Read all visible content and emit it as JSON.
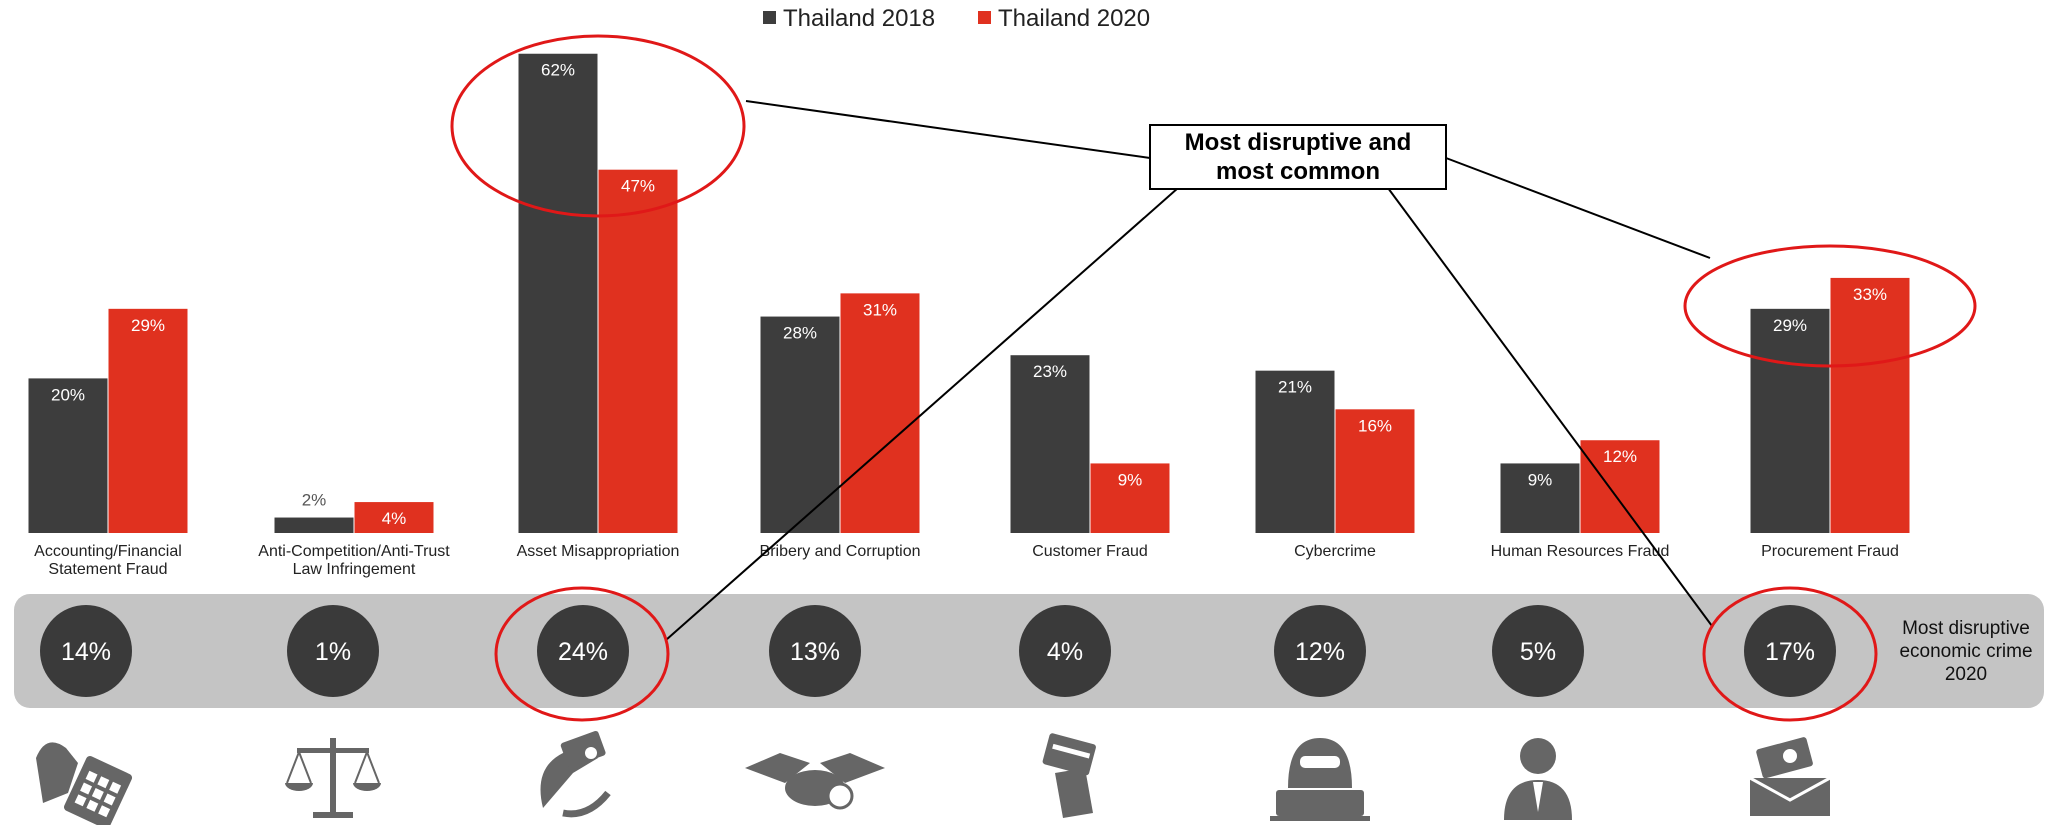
{
  "chart_data": {
    "type": "bar",
    "title": "",
    "xlabel": "",
    "ylabel": "",
    "ylim": [
      0,
      70
    ],
    "grid": false,
    "legend_position": "top-center",
    "categories": [
      "Accounting/Financial Statement Fraud",
      "Anti-Competition/Anti-Trust Law Infringement",
      "Asset Misappropriation",
      "Bribery and Corruption",
      "Customer Fraud",
      "Cybercrime",
      "Human Resources Fraud",
      "Procurement Fraud"
    ],
    "series": [
      {
        "name": "Thailand 2018",
        "values": [
          20,
          2,
          62,
          28,
          23,
          21,
          9,
          29
        ],
        "labels": [
          "20%",
          "2%",
          "62%",
          "28%",
          "23%",
          "21%",
          "9%",
          "29%"
        ]
      },
      {
        "name": "Thailand 2020",
        "values": [
          29,
          4,
          47,
          31,
          9,
          16,
          12,
          33
        ],
        "labels": [
          "29%",
          "4%",
          "47%",
          "31%",
          "9%",
          "16%",
          "12%",
          "33%"
        ]
      }
    ],
    "disruptive": {
      "label": "Most disruptive economic crime 2020",
      "values": [
        14,
        1,
        24,
        13,
        4,
        12,
        5,
        17
      ],
      "labels": [
        "14%",
        "1%",
        "24%",
        "13%",
        "4%",
        "12%",
        "5%",
        "17%"
      ]
    },
    "callout": "Most disruptive and most common",
    "highlighted_categories": [
      "Asset Misappropriation",
      "Procurement Fraud"
    ]
  },
  "colors": {
    "series_2018": "#3d3d3d",
    "series_2020": "#e0311f",
    "band": "#c4c4c4",
    "circle": "#3a3a3a",
    "highlight": "#e01818",
    "icon": "#666666"
  },
  "icons": [
    "hand-calculator-icon",
    "scales-icon",
    "money-hand-icon",
    "handshake-icon",
    "card-hand-icon",
    "hacker-icon",
    "person-icon",
    "money-envelope-icon"
  ]
}
